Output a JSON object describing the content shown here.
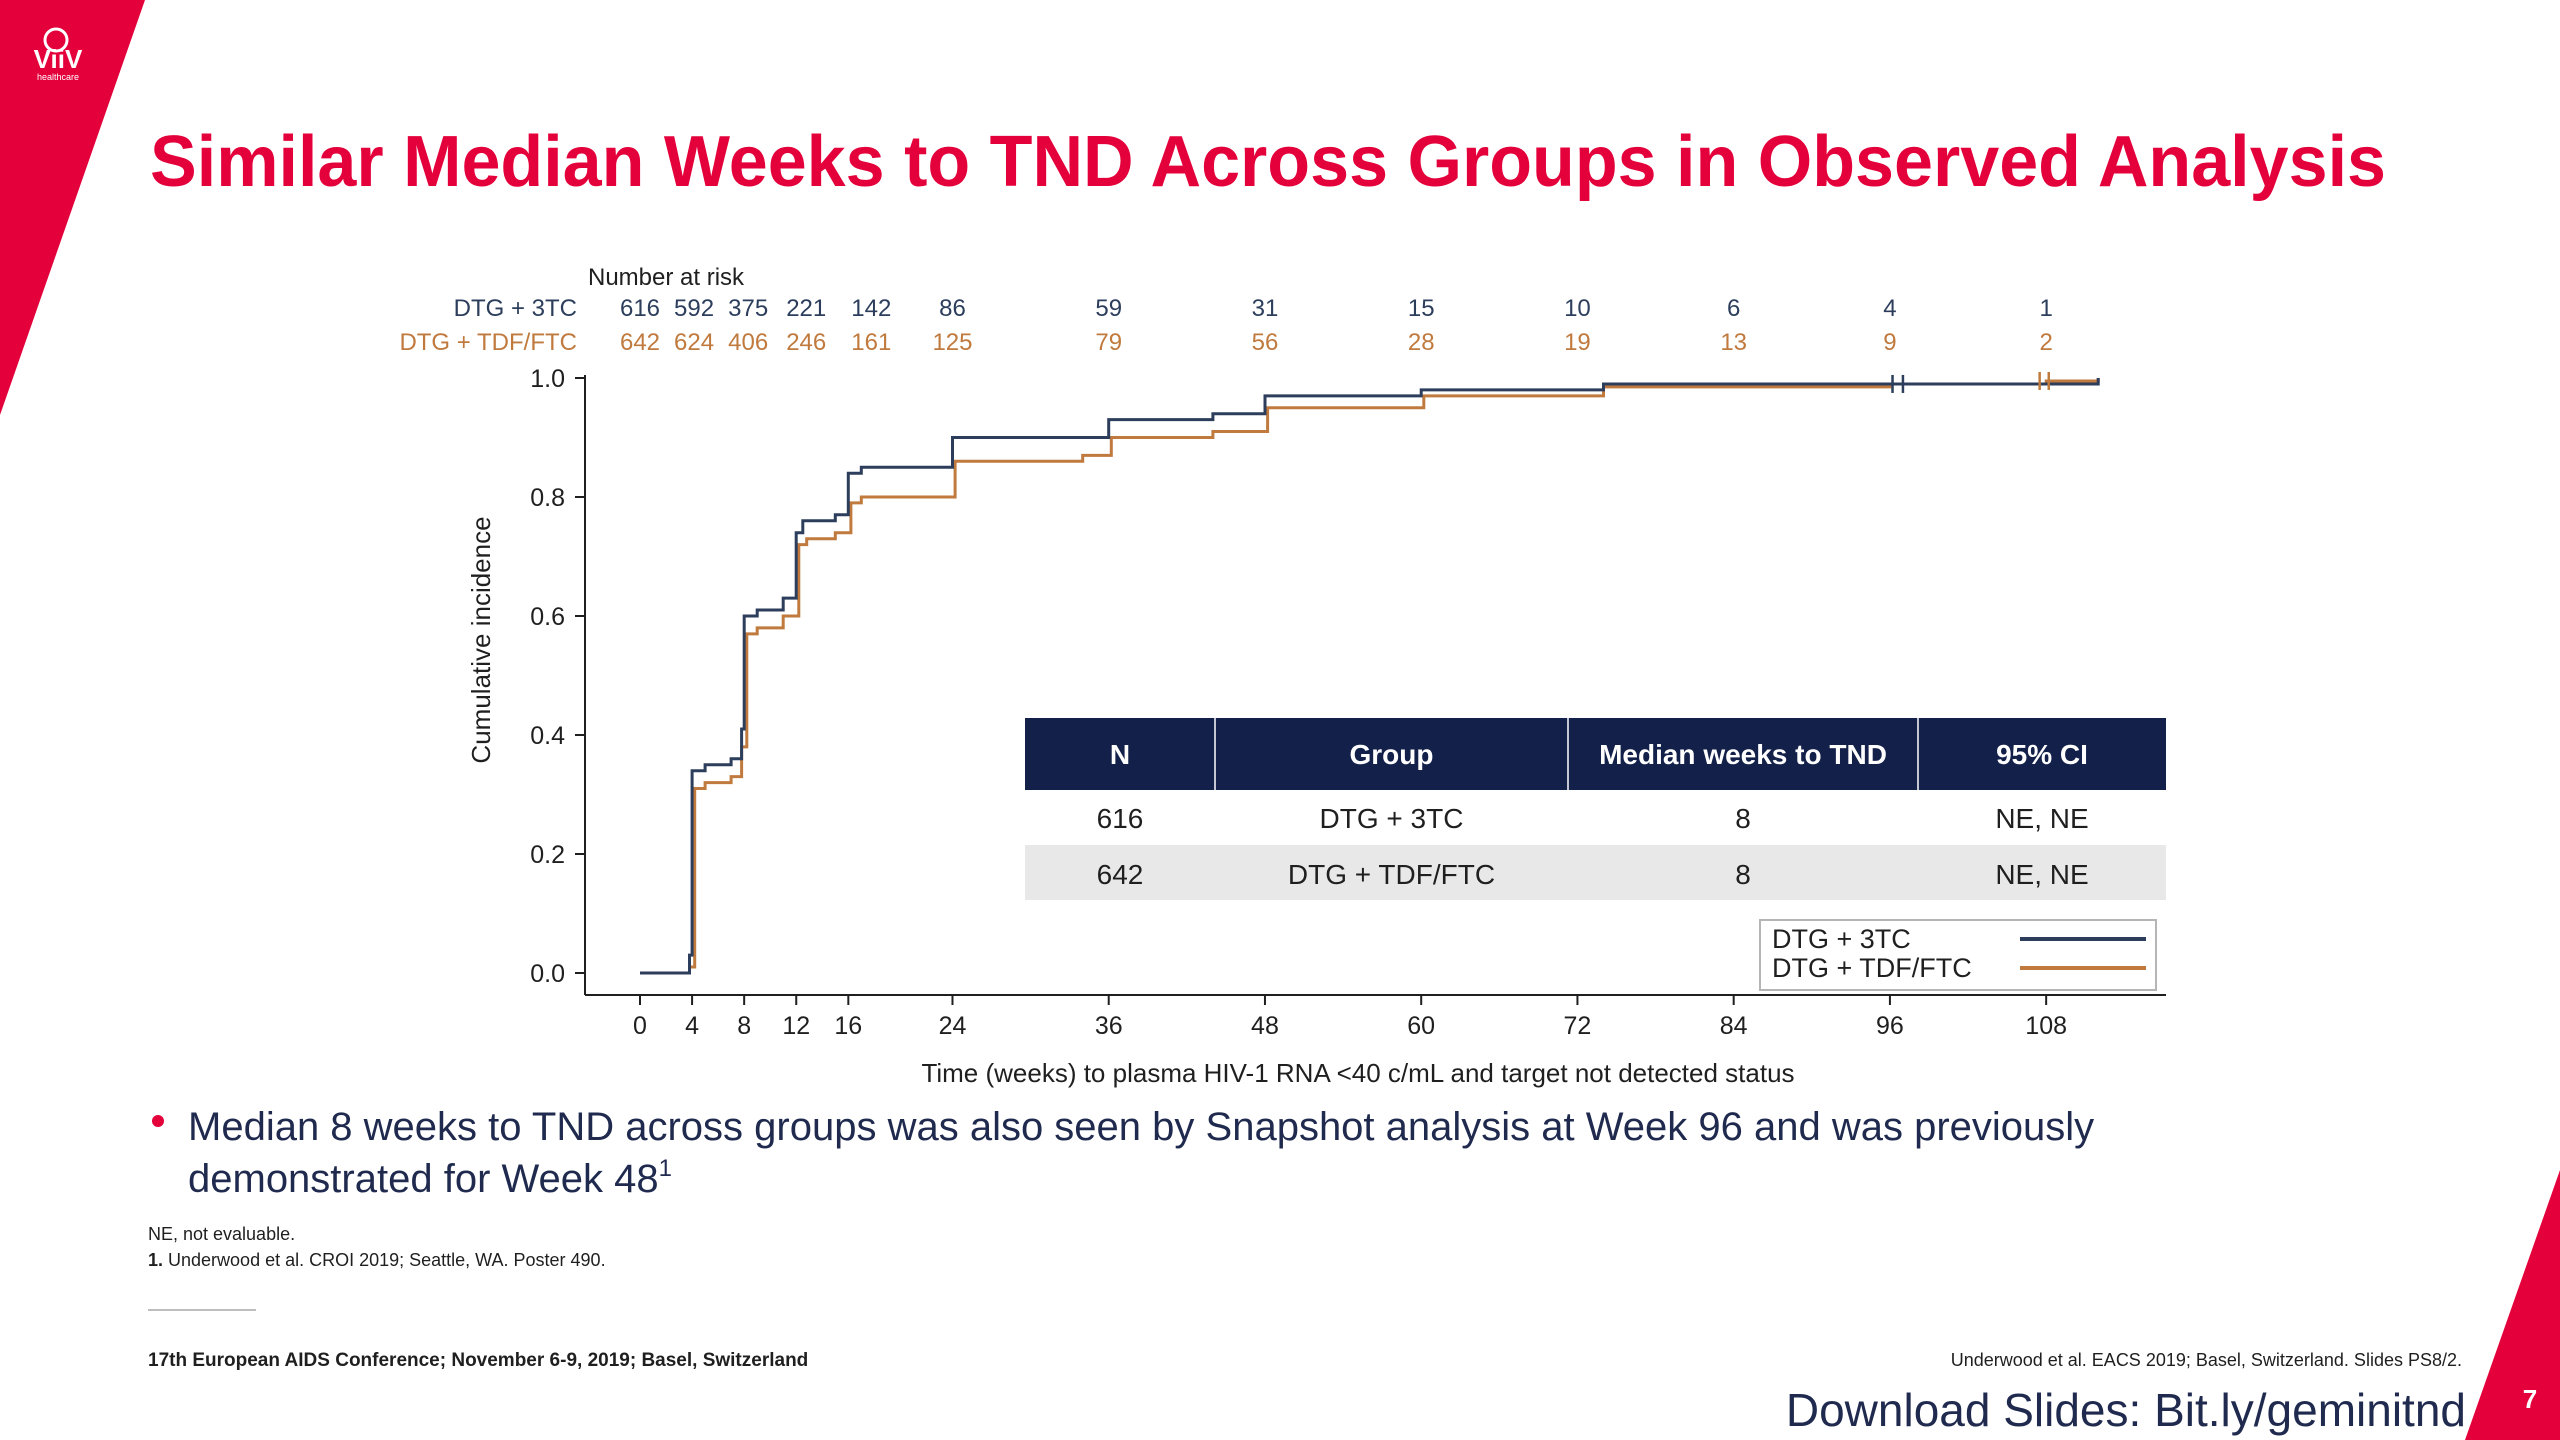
{
  "slide": {
    "logo_text": "ViiV",
    "logo_sub": "healthcare",
    "title": "Similar Median Weeks to TND Across Groups in Observed Analysis",
    "accent_color": "#e4003b",
    "page_number": "7"
  },
  "risk_table": {
    "header": "Number at risk",
    "rows": [
      {
        "label": "DTG + 3TC",
        "color": "#2c3e5c",
        "values": [
          "616",
          "592",
          "375",
          "221",
          "142",
          "86",
          "59",
          "31",
          "15",
          "10",
          "6",
          "4",
          "1"
        ]
      },
      {
        "label": "DTG + TDF/FTC",
        "color": "#c07a3e",
        "values": [
          "642",
          "624",
          "406",
          "246",
          "161",
          "125",
          "79",
          "56",
          "28",
          "19",
          "13",
          "9",
          "2"
        ]
      }
    ],
    "weeks": [
      0,
      4,
      8,
      12,
      16,
      24,
      36,
      48,
      60,
      72,
      84,
      96,
      108
    ]
  },
  "chart_data": {
    "type": "line",
    "xlabel": "Time (weeks) to plasma HIV-1 RNA <40 c/mL and target not detected status",
    "ylabel": "Cumulative incidence",
    "xlim": [
      0,
      115
    ],
    "ylim": [
      0,
      1.0
    ],
    "x_ticks": [
      "0",
      "4",
      "8",
      "12",
      "16",
      "24",
      "36",
      "48",
      "60",
      "72",
      "84",
      "96",
      "108"
    ],
    "y_ticks": [
      "0.0",
      "0.2",
      "0.4",
      "0.6",
      "0.8",
      "1.0"
    ],
    "series": [
      {
        "name": "DTG + 3TC",
        "color": "#2c3e5c",
        "x": [
          0,
          3.8,
          4.0,
          5.0,
          7.0,
          7.8,
          8.0,
          9.0,
          11.0,
          12.0,
          12.5,
          15.0,
          16.0,
          17.0,
          21.0,
          24.0,
          34.0,
          36.0,
          44.0,
          48.0,
          52.0,
          60.0,
          72.0,
          74.0,
          96.0,
          97.0,
          108.0,
          112.0
        ],
        "y": [
          0.0,
          0.03,
          0.34,
          0.35,
          0.36,
          0.41,
          0.6,
          0.61,
          0.63,
          0.74,
          0.76,
          0.77,
          0.84,
          0.85,
          0.85,
          0.9,
          0.9,
          0.93,
          0.94,
          0.97,
          0.97,
          0.98,
          0.98,
          0.99,
          0.99,
          0.99,
          0.99,
          1.0
        ]
      },
      {
        "name": "DTG + TDF/FTC",
        "color": "#c07a3e",
        "x": [
          0,
          3.8,
          4.2,
          5.0,
          7.0,
          7.8,
          8.2,
          9.0,
          11.0,
          12.2,
          12.8,
          15.0,
          16.2,
          17.0,
          21.0,
          24.2,
          34.0,
          36.2,
          44.0,
          48.2,
          52.0,
          60.2,
          72.0,
          74.0,
          96.0,
          97.0,
          108.0,
          112.0
        ],
        "y": [
          0.0,
          0.01,
          0.31,
          0.32,
          0.33,
          0.38,
          0.57,
          0.58,
          0.6,
          0.72,
          0.73,
          0.74,
          0.79,
          0.8,
          0.8,
          0.86,
          0.87,
          0.9,
          0.91,
          0.95,
          0.95,
          0.97,
          0.97,
          0.985,
          0.99,
          0.99,
          0.995,
          1.0
        ]
      }
    ],
    "censor_marks": {
      "DTG + 3TC": [
        [
          96.2,
          0.99
        ],
        [
          97.0,
          0.99
        ]
      ],
      "DTG + TDF/FTC": [
        [
          107.5,
          0.995
        ],
        [
          108.2,
          0.995
        ]
      ]
    },
    "legend": [
      "DTG + 3TC",
      "DTG + TDF/FTC"
    ],
    "legend_position": "bottom-right",
    "grid": false
  },
  "summary_table": {
    "columns": [
      "N",
      "Group",
      "Median weeks to TND",
      "95% CI"
    ],
    "rows": [
      [
        "616",
        "DTG + 3TC",
        "8",
        "NE, NE"
      ],
      [
        "642",
        "DTG + TDF/FTC",
        "8",
        "NE, NE"
      ]
    ],
    "header_color": "#13214a"
  },
  "notes": {
    "bullet_line1": "Median 8 weeks to TND across groups was also seen by Snapshot analysis at Week 96 and was previously",
    "bullet_line2": "demonstrated for Week 48",
    "bullet_sup": "1",
    "abbrev": "NE, not evaluable.",
    "ref_num": "1.",
    "ref_text": " Underwood et al. CROI 2019; Seattle, WA. Poster 490.",
    "conference": "17th European AIDS Conference; November 6-9, 2019; Basel, Switzerland",
    "citation": "Underwood et al. EACS 2019; Basel, Switzerland. Slides PS8/2.",
    "download": "Download Slides: Bit.ly/geminitnd"
  }
}
